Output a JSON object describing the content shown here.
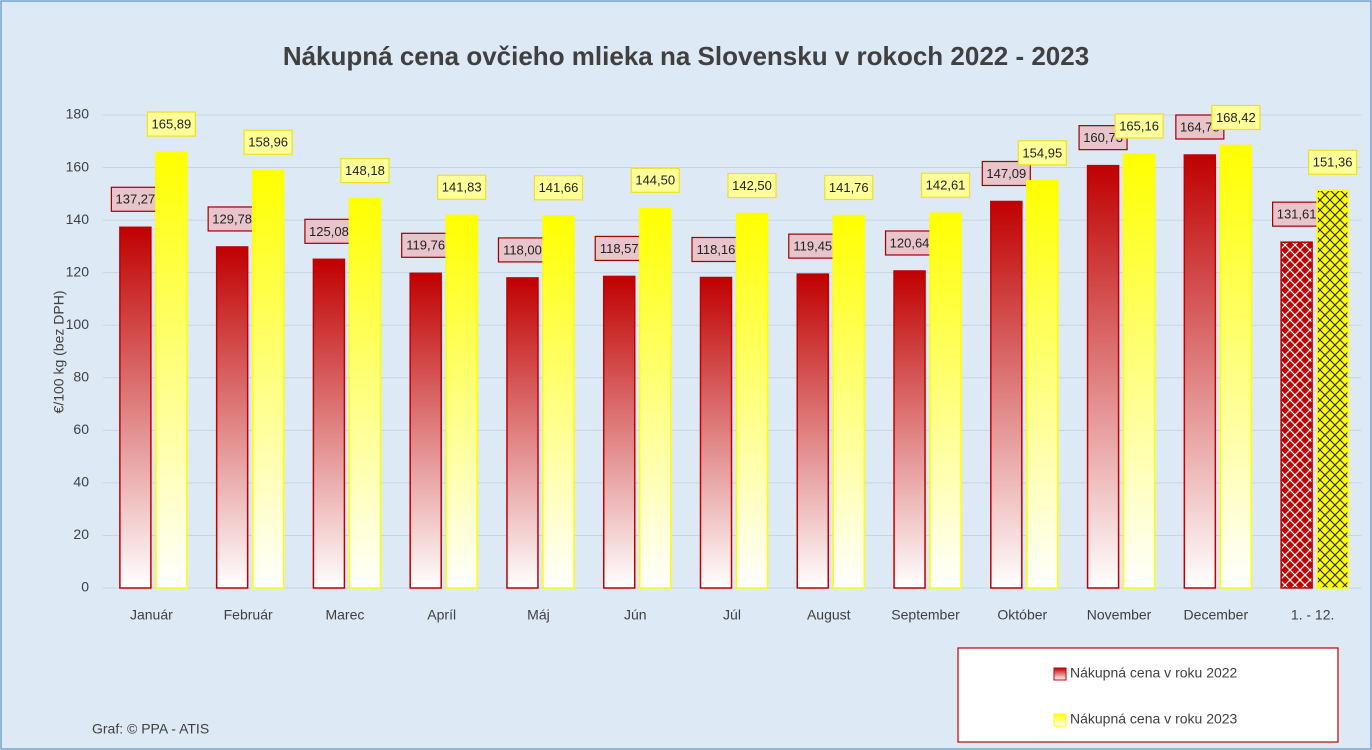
{
  "chart_data": {
    "type": "bar",
    "title": "Nákupná cena ovčieho mlieka na Slovensku v rokoch 2022 - 2023",
    "y_label": "€/100 kg (bez DPH)",
    "source": "Graf: © PPA - ATIS",
    "categories": [
      "Január",
      "Február",
      "Marec",
      "Apríl",
      "Máj",
      "Jún",
      "Júl",
      "August",
      "September",
      "Október",
      "November",
      "December",
      "1. - 12."
    ],
    "series": [
      {
        "name": "Nákupná cena v roku 2022",
        "color": "#c00000",
        "values": [
          137.27,
          129.78,
          125.08,
          119.76,
          118.0,
          118.57,
          118.16,
          119.45,
          120.64,
          147.09,
          160.73,
          164.78,
          131.61
        ],
        "value_labels": [
          "137,27",
          "129,78",
          "125,08",
          "119,76",
          "118,00",
          "118,57",
          "118,16",
          "119,45",
          "120,64",
          "147,09",
          "160,73",
          "164,78",
          "131,61"
        ]
      },
      {
        "name": "Nákupná cena v roku 2023",
        "color": "#ffff00",
        "values": [
          165.89,
          158.96,
          148.18,
          141.83,
          141.66,
          144.5,
          142.5,
          141.76,
          142.61,
          154.95,
          165.16,
          168.42,
          151.36
        ],
        "value_labels": [
          "165,89",
          "158,96",
          "148,18",
          "141,83",
          "141,66",
          "144,50",
          "142,50",
          "141,76",
          "142,61",
          "154,95",
          "165,16",
          "168,42",
          "151,36"
        ]
      }
    ],
    "ylim": [
      0,
      180
    ],
    "yticks": [
      0,
      20,
      40,
      60,
      80,
      100,
      120,
      140,
      160,
      180
    ],
    "grid": true,
    "legend": "bottom-right"
  }
}
